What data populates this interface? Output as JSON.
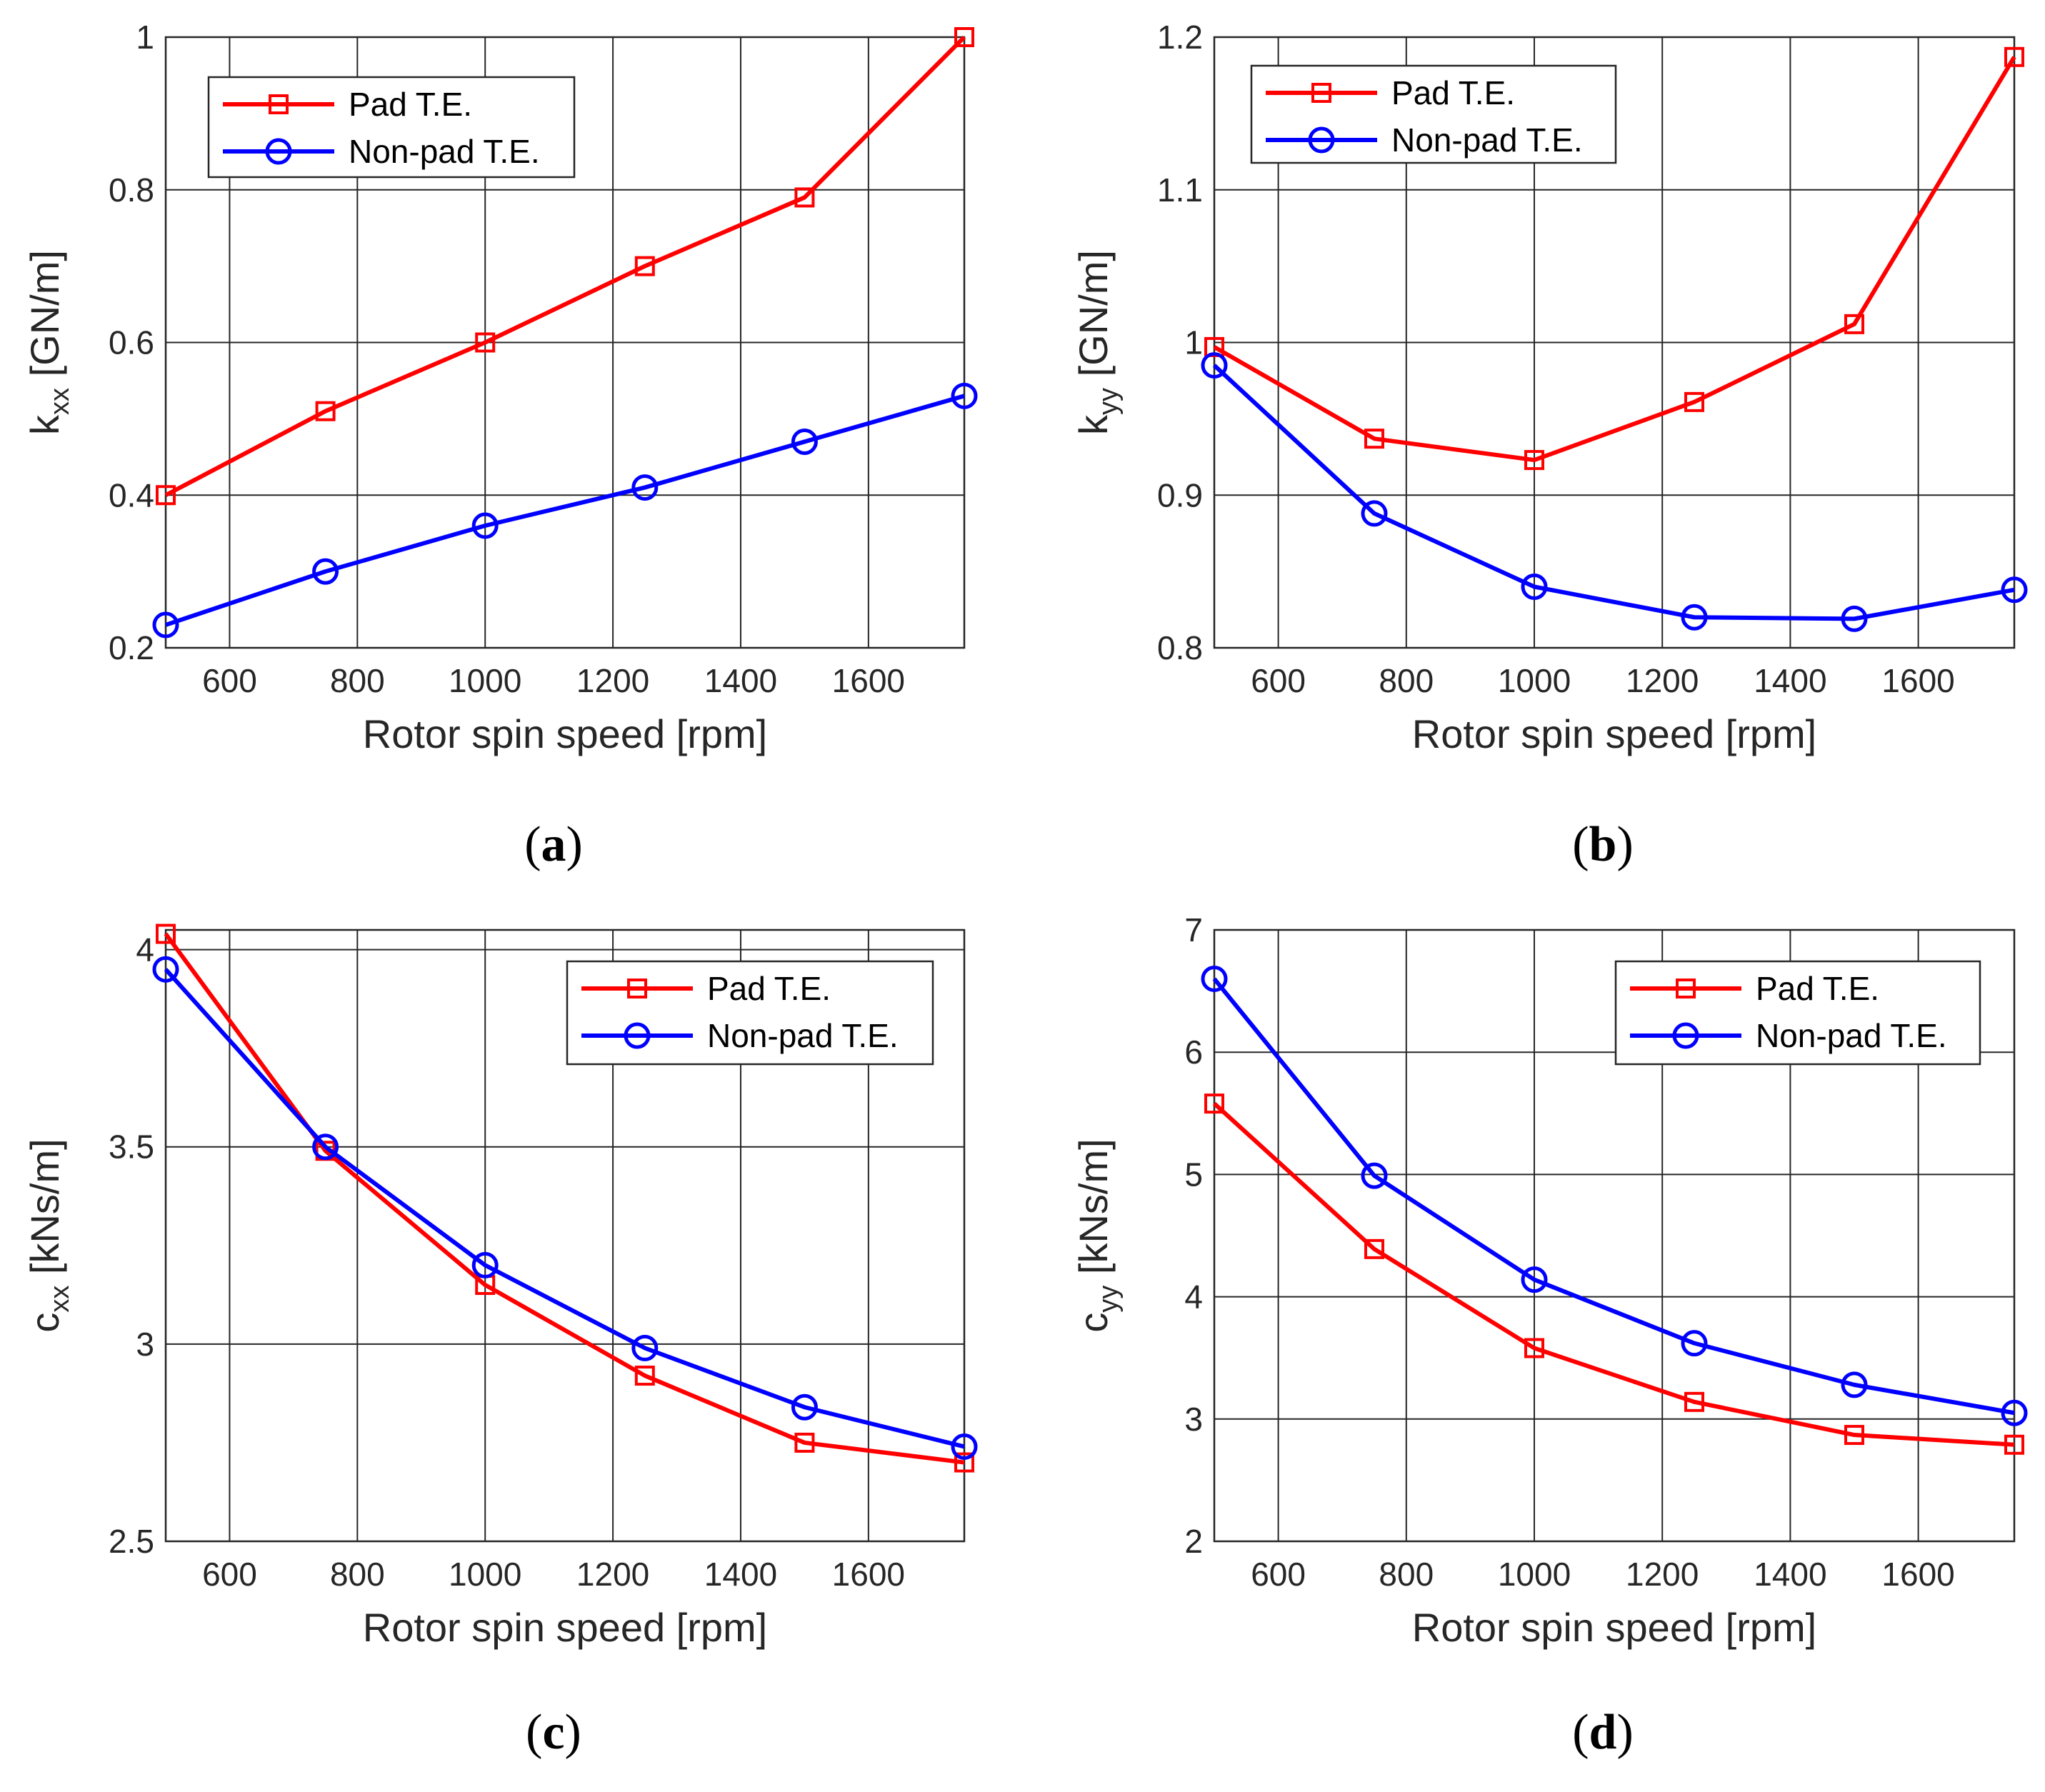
{
  "colors": {
    "pad": "#ff0000",
    "nonpad": "#0000ff",
    "grid": "#262626"
  },
  "chart_data": [
    {
      "id": "a",
      "type": "line",
      "caption": {
        "open": "(",
        "letter": "a",
        "close": ")"
      },
      "xlabel": "Rotor spin speed [rpm]",
      "ylabel": {
        "main": "k",
        "sub": "xx",
        "unit": " [GN/m]"
      },
      "x": [
        500,
        750,
        1000,
        1250,
        1500,
        1750
      ],
      "xlim": [
        500,
        1750
      ],
      "ylim": [
        0.2,
        1.0
      ],
      "xticks": [
        600,
        800,
        1000,
        1200,
        1400,
        1600
      ],
      "xtick_labels": [
        "600",
        "800",
        "1000",
        "1200",
        "1400",
        "1600"
      ],
      "yticks": [
        0.2,
        0.4,
        0.6,
        0.8,
        1.0
      ],
      "ytick_labels": [
        "0.2",
        "0.4",
        "0.6",
        "0.8",
        "1"
      ],
      "grid": true,
      "legend": {
        "position": "top-left",
        "entries": [
          "Pad T.E.",
          "Non-pad T.E."
        ]
      },
      "series": [
        {
          "name": "Pad T.E.",
          "marker": "square",
          "values": [
            0.4,
            0.51,
            0.6,
            0.7,
            0.79,
            1.0
          ]
        },
        {
          "name": "Non-pad T.E.",
          "marker": "circle",
          "values": [
            0.23,
            0.3,
            0.36,
            0.41,
            0.47,
            0.53
          ]
        }
      ]
    },
    {
      "id": "b",
      "type": "line",
      "caption": {
        "open": "(",
        "letter": "b",
        "close": ")"
      },
      "xlabel": "Rotor spin speed [rpm]",
      "ylabel": {
        "main": "k",
        "sub": "yy",
        "unit": " [GN/m]"
      },
      "x": [
        500,
        750,
        1000,
        1250,
        1500,
        1750
      ],
      "xlim": [
        500,
        1750
      ],
      "ylim": [
        0.8,
        1.2
      ],
      "xticks": [
        600,
        800,
        1000,
        1200,
        1400,
        1600
      ],
      "xtick_labels": [
        "600",
        "800",
        "1000",
        "1200",
        "1400",
        "1600"
      ],
      "yticks": [
        0.8,
        0.9,
        1.0,
        1.1,
        1.2
      ],
      "ytick_labels": [
        "0.8",
        "0.9",
        "1",
        "1.1",
        "1.2"
      ],
      "grid": true,
      "legend": {
        "position": "top-left",
        "entries": [
          "Pad T.E.",
          "Non-pad T.E."
        ]
      },
      "series": [
        {
          "name": "Pad T.E.",
          "marker": "square",
          "values": [
            0.997,
            0.937,
            0.923,
            0.961,
            1.012,
            1.187
          ]
        },
        {
          "name": "Non-pad T.E.",
          "marker": "circle",
          "values": [
            0.985,
            0.888,
            0.84,
            0.82,
            0.819,
            0.838
          ]
        }
      ]
    },
    {
      "id": "c",
      "type": "line",
      "caption": {
        "open": "(",
        "letter": "c",
        "close": ")"
      },
      "xlabel": "Rotor spin speed [rpm]",
      "ylabel": {
        "main": "c",
        "sub": "xx",
        "unit": " [kNs/m]"
      },
      "x": [
        500,
        750,
        1000,
        1250,
        1500,
        1750
      ],
      "xlim": [
        500,
        1750
      ],
      "ylim": [
        2.5,
        4.05
      ],
      "xticks": [
        600,
        800,
        1000,
        1200,
        1400,
        1600
      ],
      "xtick_labels": [
        "600",
        "800",
        "1000",
        "1200",
        "1400",
        "1600"
      ],
      "yticks": [
        2.5,
        3.0,
        3.5,
        4.0
      ],
      "ytick_labels": [
        "2.5",
        "3",
        "3.5",
        "4"
      ],
      "grid": true,
      "legend": {
        "position": "top-right",
        "entries": [
          "Pad T.E.",
          "Non-pad T.E."
        ]
      },
      "series": [
        {
          "name": "Pad T.E.",
          "marker": "square",
          "values": [
            4.04,
            3.49,
            3.15,
            2.92,
            2.75,
            2.7
          ]
        },
        {
          "name": "Non-pad T.E.",
          "marker": "circle",
          "values": [
            3.95,
            3.5,
            3.2,
            2.99,
            2.84,
            2.74
          ]
        }
      ]
    },
    {
      "id": "d",
      "type": "line",
      "caption": {
        "open": "(",
        "letter": "d",
        "close": ")"
      },
      "xlabel": "Rotor spin speed [rpm]",
      "ylabel": {
        "main": "c",
        "sub": "yy",
        "unit": " [kNs/m]"
      },
      "x": [
        500,
        750,
        1000,
        1250,
        1500,
        1750
      ],
      "xlim": [
        500,
        1750
      ],
      "ylim": [
        2,
        7
      ],
      "xticks": [
        600,
        800,
        1000,
        1200,
        1400,
        1600
      ],
      "xtick_labels": [
        "600",
        "800",
        "1000",
        "1200",
        "1400",
        "1600"
      ],
      "yticks": [
        2,
        3,
        4,
        5,
        6,
        7
      ],
      "ytick_labels": [
        "2",
        "3",
        "4",
        "5",
        "6",
        "7"
      ],
      "grid": true,
      "legend": {
        "position": "top-right",
        "entries": [
          "Pad T.E.",
          "Non-pad T.E."
        ]
      },
      "series": [
        {
          "name": "Pad T.E.",
          "marker": "square",
          "values": [
            5.58,
            4.39,
            3.58,
            3.14,
            2.87,
            2.79
          ]
        },
        {
          "name": "Non-pad T.E.",
          "marker": "circle",
          "values": [
            6.6,
            4.99,
            4.14,
            3.62,
            3.28,
            3.05
          ]
        }
      ]
    }
  ]
}
